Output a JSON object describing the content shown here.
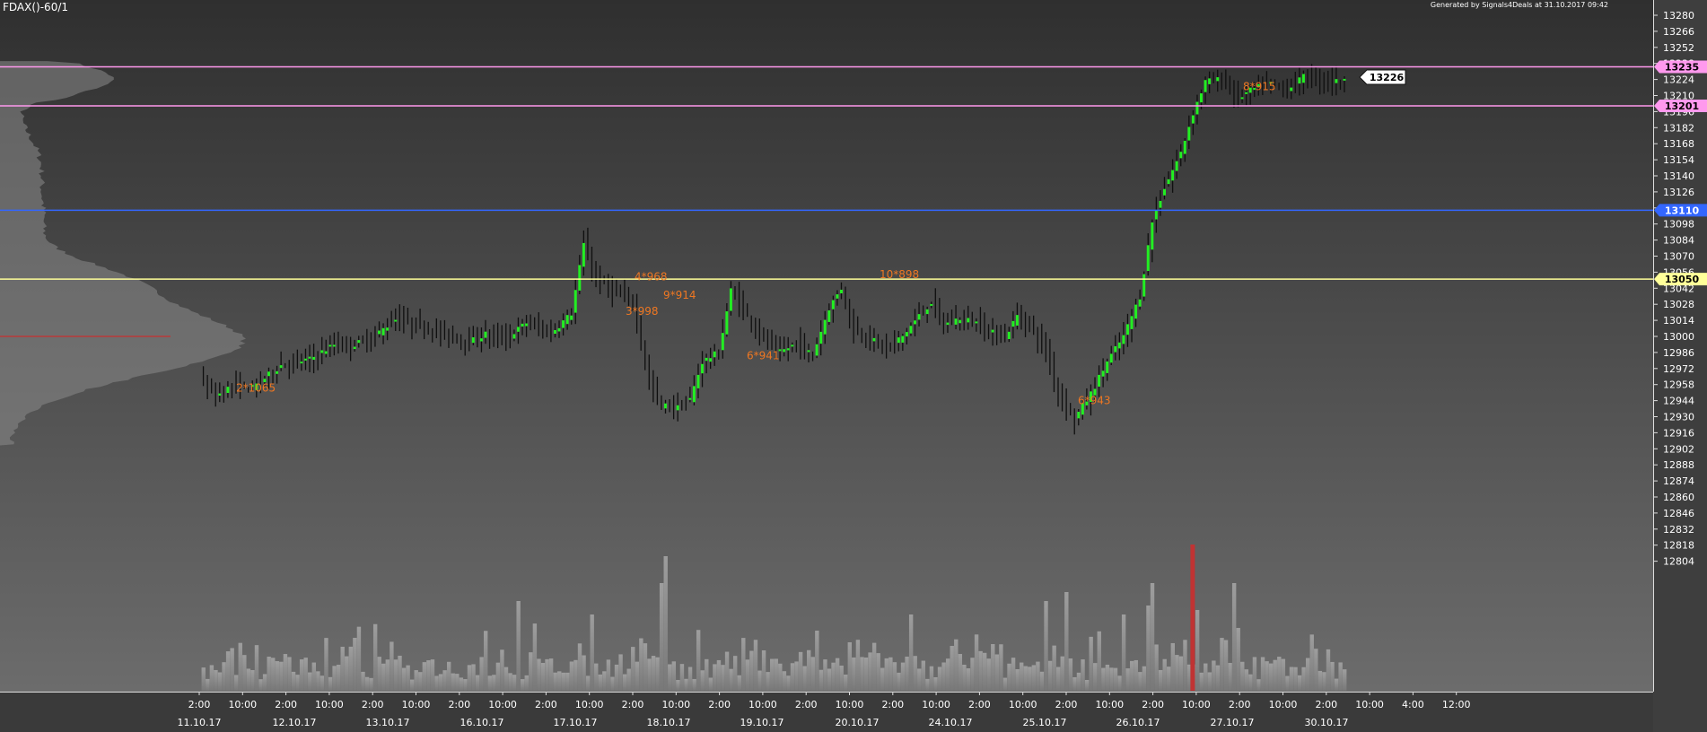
{
  "header": {
    "title": "FDAX()-60/1",
    "generated": "Generated by Signals4Deals at 31.10.2017 09:42"
  },
  "colors": {
    "bg_top": "#2f2f2f",
    "bg_bottom": "#6c6c6c",
    "axis_bg": "#3e3e3e",
    "candle_up": "#22ee22",
    "wick": "#0f0f0f",
    "annotation": "#ee7722",
    "line_magenta": "#ff99ee",
    "line_blue": "#3366ff",
    "line_yellow": "#ffff99",
    "volume": "#9a9a9a",
    "volume_spike": "#c03333",
    "poc_line": "#c83030"
  },
  "chart_data": {
    "type": "candlestick",
    "symbol": "FDAX()-60/1",
    "y_axis": {
      "range": [
        12793,
        13291
      ],
      "ticks": [
        13280,
        13266,
        13252,
        13238,
        13224,
        13210,
        13196,
        13182,
        13168,
        13154,
        13140,
        13126,
        13112,
        13098,
        13084,
        13070,
        13056,
        13042,
        13028,
        13014,
        13000,
        12986,
        12972,
        12958,
        12944,
        12930,
        12916,
        12902,
        12888,
        12874,
        12860,
        12846,
        12832,
        12818,
        12804
      ]
    },
    "levels": [
      {
        "value": 13235,
        "label": "13235",
        "color": "#ff99ee"
      },
      {
        "value": 13201,
        "label": "13201",
        "color": "#ff99ee"
      },
      {
        "value": 13110,
        "label": "13110",
        "color": "#3366ff"
      },
      {
        "value": 13050,
        "label": "13050",
        "color": "#ffff99"
      }
    ],
    "last_price": {
      "value": 13226,
      "label": "13226"
    },
    "time_labels": [
      "2:00",
      "10:00",
      "2:00",
      "10:00",
      "2:00",
      "10:00",
      "2:00",
      "10:00",
      "2:00",
      "10:00",
      "2:00",
      "10:00",
      "2:00",
      "10:00",
      "2:00",
      "10:00",
      "2:00",
      "10:00",
      "2:00",
      "10:00",
      "2:00",
      "10:00",
      "2:00",
      "10:00",
      "2:00",
      "10:00",
      "2:00",
      "10:00",
      "4:00",
      "12:00"
    ],
    "date_labels": [
      "11.10.17",
      "12.10.17",
      "13.10.17",
      "16.10.17",
      "17.10.17",
      "18.10.17",
      "19.10.17",
      "20.10.17",
      "24.10.17",
      "25.10.17",
      "26.10.17",
      "27.10.17",
      "30.10.17"
    ],
    "annotations": [
      {
        "text": "2*1065",
        "price": 12955
      },
      {
        "text": "4*968",
        "price": 13052
      },
      {
        "text": "9*914",
        "price": 13036
      },
      {
        "text": "3*998",
        "price": 13022
      },
      {
        "text": "6*941",
        "price": 12983
      },
      {
        "text": "10*898",
        "price": 13054
      },
      {
        "text": "6*943",
        "price": 12944
      },
      {
        "text": "8*915",
        "price": 13218
      }
    ],
    "anchors": [
      {
        "bar": 0,
        "price": 12962
      },
      {
        "bar": 4,
        "price": 12948
      },
      {
        "bar": 8,
        "price": 12957
      },
      {
        "bar": 13,
        "price": 12955
      },
      {
        "bar": 20,
        "price": 12975
      },
      {
        "bar": 27,
        "price": 12980
      },
      {
        "bar": 33,
        "price": 12993
      },
      {
        "bar": 37,
        "price": 12992
      },
      {
        "bar": 42,
        "price": 12998
      },
      {
        "bar": 48,
        "price": 13015
      },
      {
        "bar": 55,
        "price": 13008
      },
      {
        "bar": 62,
        "price": 13000
      },
      {
        "bar": 66,
        "price": 12995
      },
      {
        "bar": 70,
        "price": 13002
      },
      {
        "bar": 75,
        "price": 12998
      },
      {
        "bar": 80,
        "price": 13012
      },
      {
        "bar": 86,
        "price": 13003
      },
      {
        "bar": 91,
        "price": 13020
      },
      {
        "bar": 94,
        "price": 13080
      },
      {
        "bar": 97,
        "price": 13050
      },
      {
        "bar": 101,
        "price": 13040
      },
      {
        "bar": 106,
        "price": 13030
      },
      {
        "bar": 110,
        "price": 12960
      },
      {
        "bar": 113,
        "price": 12940
      },
      {
        "bar": 117,
        "price": 12938
      },
      {
        "bar": 120,
        "price": 12945
      },
      {
        "bar": 123,
        "price": 12978
      },
      {
        "bar": 127,
        "price": 12986
      },
      {
        "bar": 130,
        "price": 13040
      },
      {
        "bar": 134,
        "price": 13018
      },
      {
        "bar": 138,
        "price": 12998
      },
      {
        "bar": 142,
        "price": 12986
      },
      {
        "bar": 146,
        "price": 12994
      },
      {
        "bar": 150,
        "price": 12984
      },
      {
        "bar": 154,
        "price": 13025
      },
      {
        "bar": 157,
        "price": 13042
      },
      {
        "bar": 160,
        "price": 13005
      },
      {
        "bar": 164,
        "price": 12998
      },
      {
        "bar": 168,
        "price": 12990
      },
      {
        "bar": 172,
        "price": 13000
      },
      {
        "bar": 176,
        "price": 13018
      },
      {
        "bar": 179,
        "price": 13030
      },
      {
        "bar": 182,
        "price": 13010
      },
      {
        "bar": 186,
        "price": 13016
      },
      {
        "bar": 190,
        "price": 13012
      },
      {
        "bar": 193,
        "price": 13004
      },
      {
        "bar": 197,
        "price": 13000
      },
      {
        "bar": 200,
        "price": 13018
      },
      {
        "bar": 203,
        "price": 13010
      },
      {
        "bar": 207,
        "price": 12988
      },
      {
        "bar": 210,
        "price": 12950
      },
      {
        "bar": 214,
        "price": 12928
      },
      {
        "bar": 218,
        "price": 12950
      },
      {
        "bar": 222,
        "price": 12978
      },
      {
        "bar": 226,
        "price": 13000
      },
      {
        "bar": 230,
        "price": 13035
      },
      {
        "bar": 233,
        "price": 13100
      },
      {
        "bar": 236,
        "price": 13130
      },
      {
        "bar": 240,
        "price": 13160
      },
      {
        "bar": 243,
        "price": 13195
      },
      {
        "bar": 246,
        "price": 13222
      },
      {
        "bar": 250,
        "price": 13224
      },
      {
        "bar": 254,
        "price": 13208
      },
      {
        "bar": 258,
        "price": 13216
      },
      {
        "bar": 262,
        "price": 13220
      },
      {
        "bar": 266,
        "price": 13215
      },
      {
        "bar": 270,
        "price": 13226
      },
      {
        "bar": 275,
        "price": 13223
      },
      {
        "bar": 280,
        "price": 13222
      }
    ]
  }
}
